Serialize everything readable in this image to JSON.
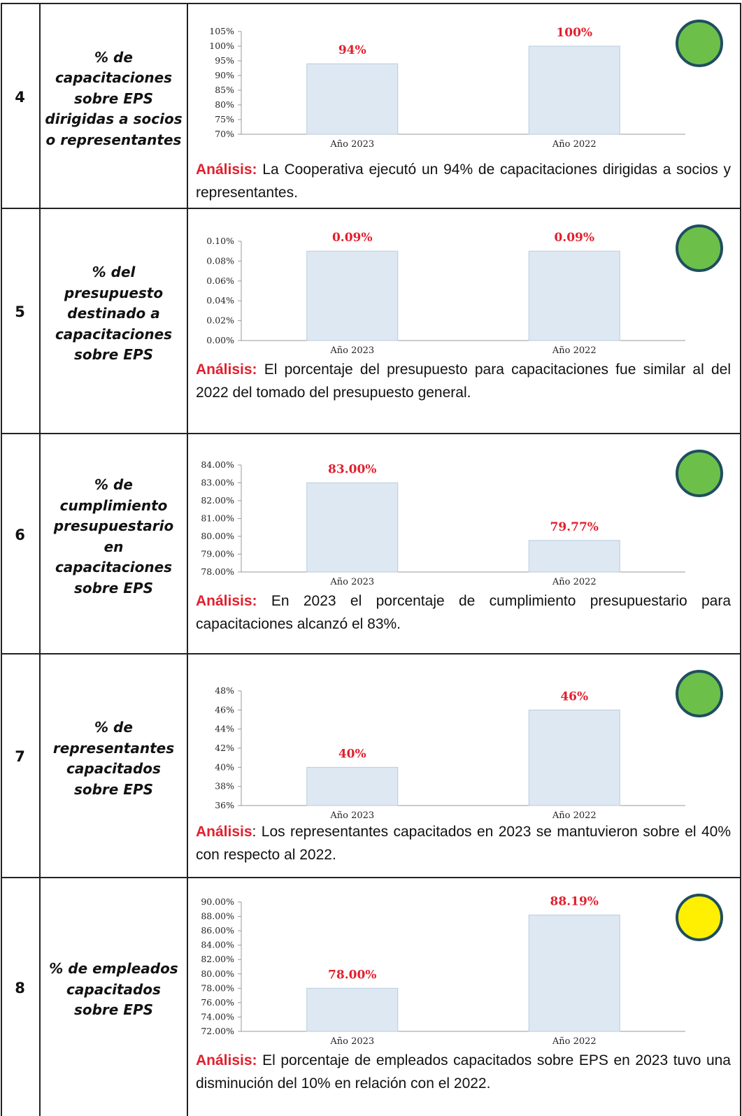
{
  "rows": [
    {
      "number": "4",
      "indicator": [
        "% de",
        "capacitaciones",
        "sobre EPS",
        "dirigidas a socios",
        "o representantes"
      ],
      "chart": {
        "ylim": [
          70,
          105
        ],
        "yticks": [
          {
            "value": 70,
            "label": "70%"
          },
          {
            "value": 75,
            "label": "75%"
          },
          {
            "value": 80,
            "label": "80%"
          },
          {
            "value": 85,
            "label": "85%"
          },
          {
            "value": 90,
            "label": "90%"
          },
          {
            "value": 95,
            "label": "95%"
          },
          {
            "value": 100,
            "label": "100%"
          },
          {
            "value": 105,
            "label": "105%"
          }
        ],
        "categories": [
          "Año 2023",
          "Año 2022"
        ],
        "values": [
          94,
          100
        ],
        "value_labels": [
          "94%",
          "100%"
        ]
      },
      "analysis_label": "Análisis:",
      "analysis_text": " La Cooperativa ejecutó un 94% de capacitaciones dirigidas a socios y representantes.",
      "status_color": "#6cc04a"
    },
    {
      "number": "5",
      "indicator": [
        "% del",
        "presupuesto",
        "destinado a",
        "capacitaciones",
        "sobre EPS"
      ],
      "chart": {
        "ylim": [
          0,
          0.1
        ],
        "yticks": [
          {
            "value": 0,
            "label": "0.00%"
          },
          {
            "value": 0.02,
            "label": "0.02%"
          },
          {
            "value": 0.04,
            "label": "0.04%"
          },
          {
            "value": 0.06,
            "label": "0.06%"
          },
          {
            "value": 0.08,
            "label": "0.08%"
          },
          {
            "value": 0.1,
            "label": "0.10%"
          }
        ],
        "categories": [
          "Año 2023",
          "Año 2022"
        ],
        "values": [
          0.09,
          0.09
        ],
        "value_labels": [
          "0.09%",
          "0.09%"
        ]
      },
      "analysis_label": "Análisis:",
      "analysis_text": " El porcentaje del presupuesto para capacitaciones fue similar al del 2022 del tomado del presupuesto general.",
      "status_color": "#6cc04a"
    },
    {
      "number": "6",
      "indicator": [
        "% de",
        "cumplimiento",
        "presupuestario",
        "en",
        "capacitaciones",
        "sobre EPS"
      ],
      "chart": {
        "ylim": [
          78,
          84
        ],
        "yticks": [
          {
            "value": 78,
            "label": "78.00%"
          },
          {
            "value": 79,
            "label": "79.00%"
          },
          {
            "value": 80,
            "label": "80.00%"
          },
          {
            "value": 81,
            "label": "81.00%"
          },
          {
            "value": 82,
            "label": "82.00%"
          },
          {
            "value": 83,
            "label": "83.00%"
          },
          {
            "value": 84,
            "label": "84.00%"
          }
        ],
        "categories": [
          "Año 2023",
          "Año 2022"
        ],
        "values": [
          83,
          79.77
        ],
        "value_labels": [
          "83.00%",
          "79.77%"
        ]
      },
      "analysis_label": "Análisis:",
      "analysis_text": " En 2023 el porcentaje de cumplimiento presupuestario para capacitaciones alcanzó el 83%.",
      "status_color": "#6cc04a"
    },
    {
      "number": "7",
      "indicator": [
        "% de",
        "representantes",
        "capacitados",
        "sobre EPS"
      ],
      "chart": {
        "ylim": [
          36,
          48
        ],
        "yticks": [
          {
            "value": 36,
            "label": "36%"
          },
          {
            "value": 38,
            "label": "38%"
          },
          {
            "value": 40,
            "label": "40%"
          },
          {
            "value": 42,
            "label": "42%"
          },
          {
            "value": 44,
            "label": "44%"
          },
          {
            "value": 46,
            "label": "46%"
          },
          {
            "value": 48,
            "label": "48%"
          }
        ],
        "categories": [
          "Año 2023",
          "Año 2022"
        ],
        "values": [
          40,
          46
        ],
        "value_labels": [
          "40%",
          "46%"
        ]
      },
      "analysis_label": "Análisis",
      "analysis_text": ": Los representantes capacitados en 2023 se mantuvieron sobre el 40% con respecto al 2022.",
      "status_color": "#6cc04a"
    },
    {
      "number": "8",
      "indicator": [
        "% de empleados",
        "capacitados",
        "sobre EPS"
      ],
      "chart": {
        "ylim": [
          72,
          90
        ],
        "yticks": [
          {
            "value": 72,
            "label": "72.00%"
          },
          {
            "value": 74,
            "label": "74.00%"
          },
          {
            "value": 76,
            "label": "76.00%"
          },
          {
            "value": 78,
            "label": "78.00%"
          },
          {
            "value": 80,
            "label": "80.00%"
          },
          {
            "value": 82,
            "label": "82.00%"
          },
          {
            "value": 84,
            "label": "84.00%"
          },
          {
            "value": 86,
            "label": "86.00%"
          },
          {
            "value": 88,
            "label": "88.00%"
          },
          {
            "value": 90,
            "label": "90.00%"
          }
        ],
        "categories": [
          "Año 2023",
          "Año 2022"
        ],
        "values": [
          78,
          88.19
        ],
        "value_labels": [
          "78.00%",
          "88.19%"
        ]
      },
      "analysis_label": "Análisis:",
      "analysis_text": " El porcentaje de empleados capacitados sobre EPS en 2023 tuvo una disminución del 10% en relación con el 2022.",
      "status_color": "#ffef00"
    }
  ]
}
